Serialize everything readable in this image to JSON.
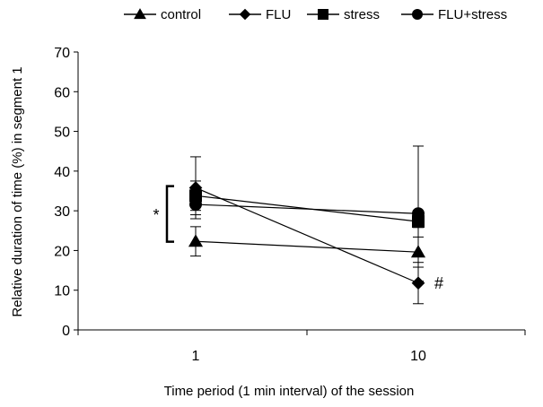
{
  "chart_data": {
    "type": "line",
    "title": "",
    "xlabel": "Time period (1 min interval) of the session",
    "ylabel": "Relative duration of time (%) in segment 1",
    "x": [
      "1",
      "10"
    ],
    "ylim": [
      0,
      70
    ],
    "yticks": [
      0,
      10,
      20,
      30,
      40,
      50,
      60,
      70
    ],
    "grid": false,
    "legend_position": "top",
    "series": [
      {
        "name": "control",
        "marker": "triangle",
        "values": [
          22.3,
          19.6
        ],
        "error": [
          3.7,
          3.8
        ]
      },
      {
        "name": "FLU",
        "marker": "diamond",
        "values": [
          35.8,
          11.8
        ],
        "error": [
          7.8,
          5.2
        ]
      },
      {
        "name": "stress",
        "marker": "square",
        "values": [
          33.8,
          27.3
        ],
        "error": [
          3.7,
          1.5
        ]
      },
      {
        "name": "FLU+stress",
        "marker": "circle",
        "values": [
          31.6,
          29.3
        ],
        "error": [
          2.6,
          17.0
        ]
      }
    ],
    "annotations": [
      {
        "text": "*",
        "note": "significance bracket at time 1"
      },
      {
        "text": "#",
        "note": "next to FLU at time 10"
      }
    ],
    "colors": {
      "ink": "#000000",
      "background": "#ffffff"
    }
  }
}
